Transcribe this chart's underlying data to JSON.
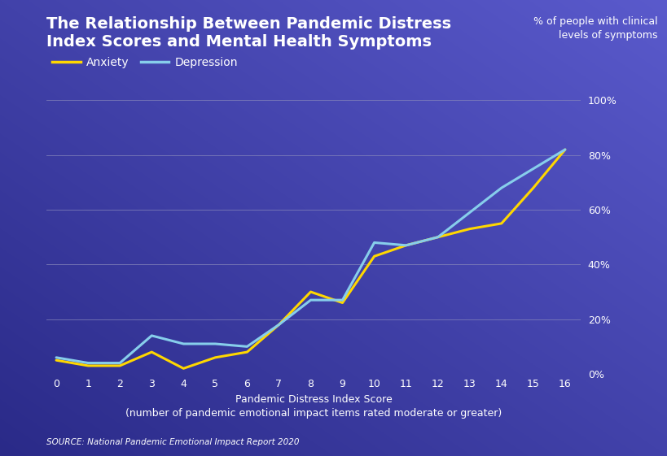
{
  "title_line1": "The Relationship Between Pandemic Distress",
  "title_line2": "Index Scores and Mental Health Symptoms",
  "ylabel_right": "% of people with clinical\nlevels of symptoms",
  "xlabel_line1": "Pandemic Distress Index Score",
  "xlabel_line2": "(number of pandemic emotional impact items rated moderate or greater)",
  "source_text": "SOURCE: National Pandemic Emotional Impact Report 2020",
  "x": [
    0,
    1,
    2,
    3,
    4,
    5,
    6,
    7,
    8,
    9,
    10,
    11,
    12,
    13,
    14,
    15,
    16
  ],
  "anxiety": [
    5,
    3,
    3,
    8,
    2,
    6,
    8,
    18,
    30,
    26,
    43,
    47,
    50,
    53,
    55,
    68,
    82
  ],
  "depression": [
    6,
    4,
    4,
    14,
    11,
    11,
    10,
    18,
    27,
    27,
    48,
    47,
    50,
    59,
    68,
    75,
    82
  ],
  "anxiety_color": "#FFD700",
  "depression_color": "#87CEEB",
  "line_width": 2.2,
  "grid_color": "#8888bb",
  "text_color": "#ffffff",
  "ylim": [
    0,
    100
  ],
  "xlim": [
    -0.3,
    16.5
  ],
  "yticks": [
    0,
    20,
    40,
    60,
    80,
    100
  ],
  "ytick_labels": [
    "0%",
    "20%",
    "40%",
    "60%",
    "80%",
    "100%"
  ],
  "xticks": [
    0,
    1,
    2,
    3,
    4,
    5,
    6,
    7,
    8,
    9,
    10,
    11,
    12,
    13,
    14,
    15,
    16
  ],
  "title_fontsize": 14,
  "axis_label_fontsize": 9,
  "tick_fontsize": 9,
  "legend_fontsize": 10,
  "source_fontsize": 7.5,
  "bg_left_color": "#3535a0",
  "bg_right_color": "#6060c8",
  "bg_top_color": "#2e2e90",
  "bg_bottom_color": "#6868c8"
}
